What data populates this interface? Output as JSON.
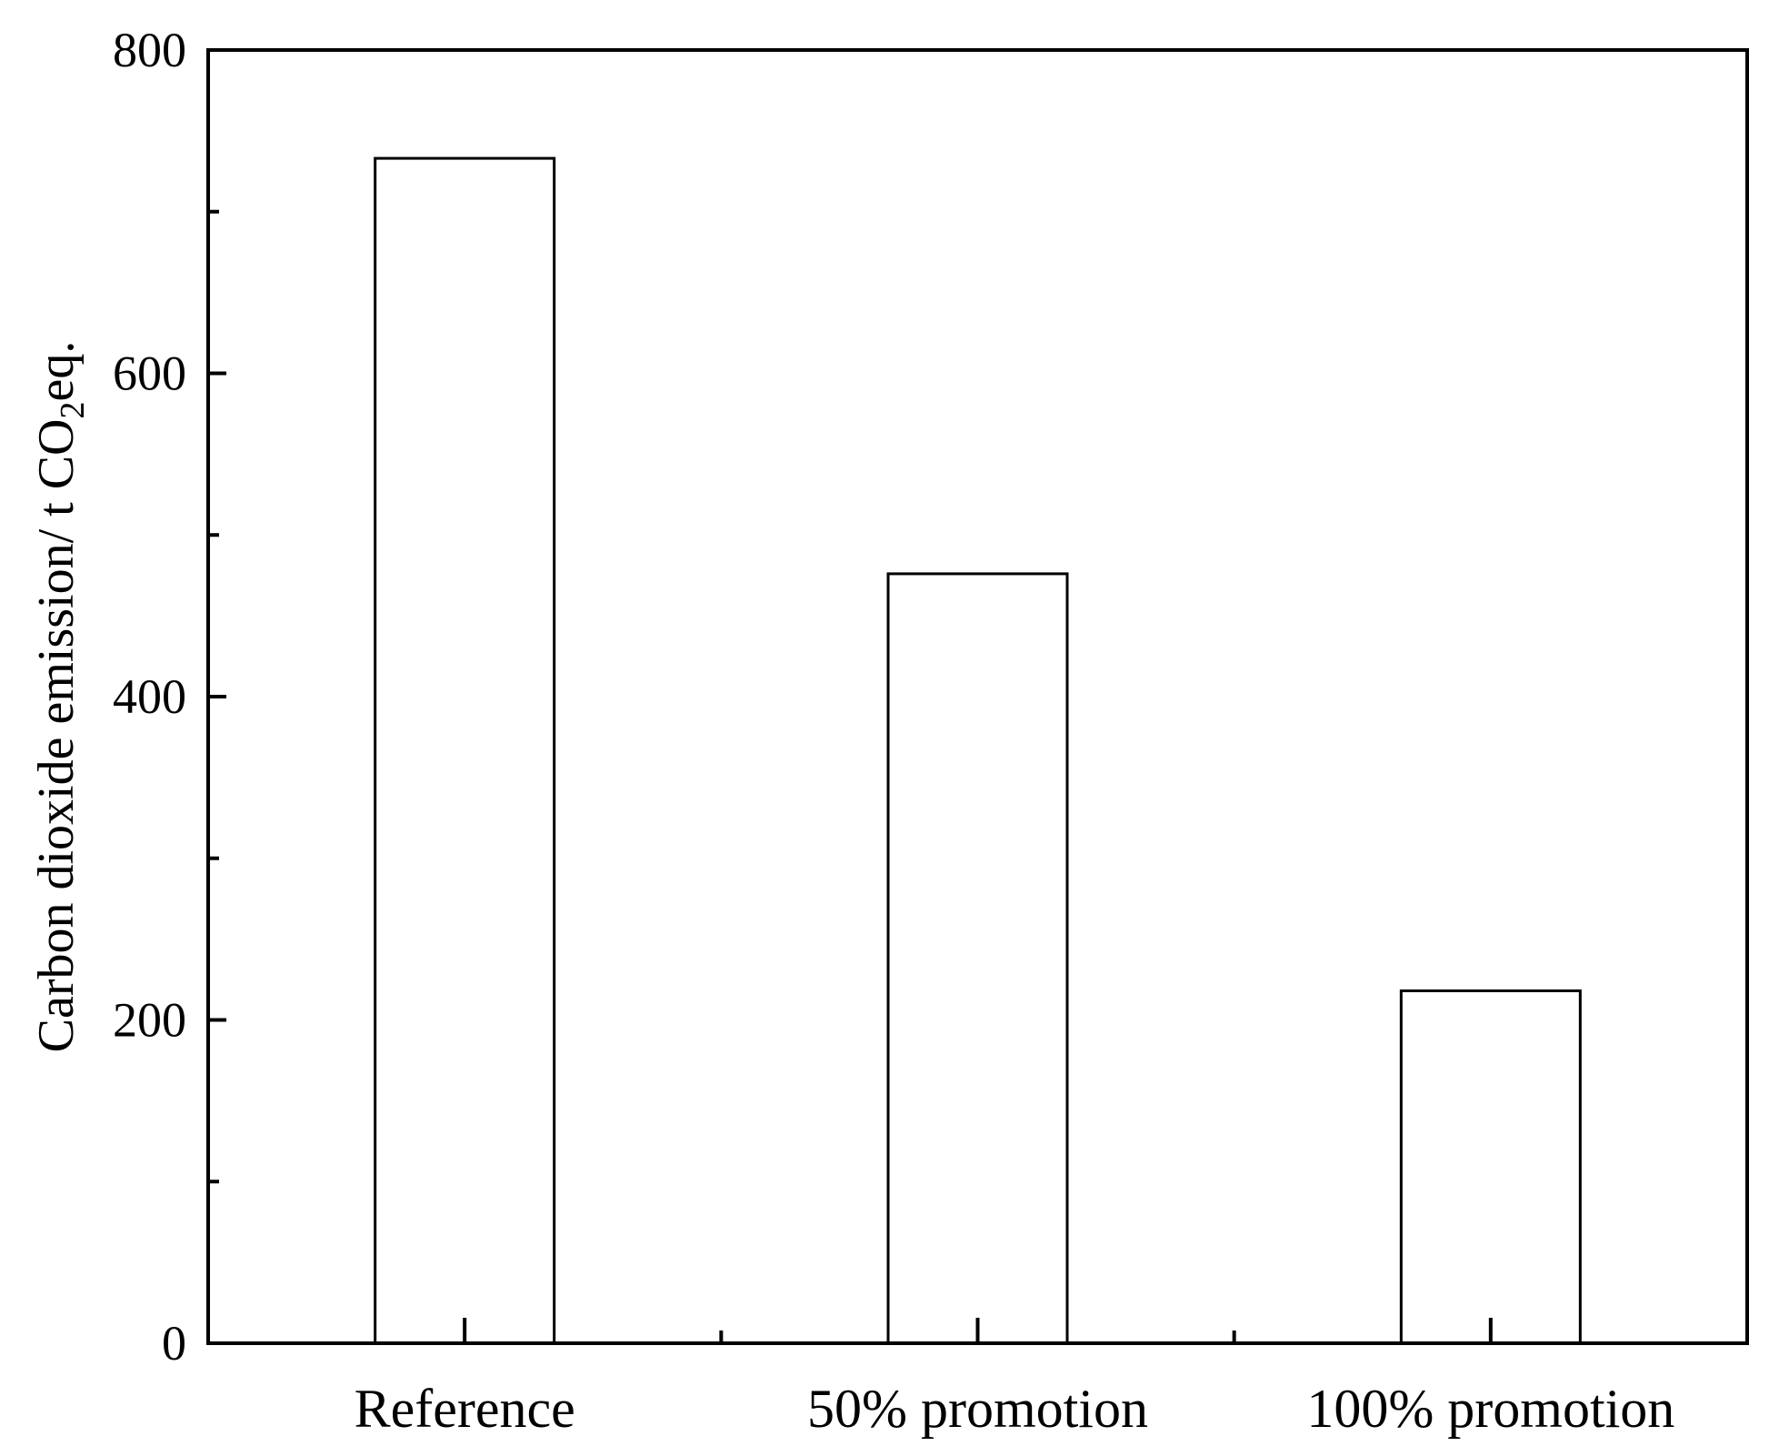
{
  "chart_data": {
    "type": "bar",
    "categories": [
      "Reference",
      "50% promotion",
      "100% promotion"
    ],
    "values": [
      733,
      476,
      218
    ],
    "ylim": [
      0,
      800
    ],
    "yticks": [
      0,
      200,
      400,
      600,
      800
    ],
    "yminor": [
      100,
      300,
      500,
      700
    ],
    "ylabel_main": "Carbon dioxide emission/ t CO",
    "ylabel_sub": "2",
    "ylabel_tail": "eq.",
    "xlabel": "",
    "title": "",
    "grid": false,
    "colors": {
      "bar_fill": "#ffffff",
      "bar_stroke": "#000000",
      "axis": "#000000"
    }
  }
}
